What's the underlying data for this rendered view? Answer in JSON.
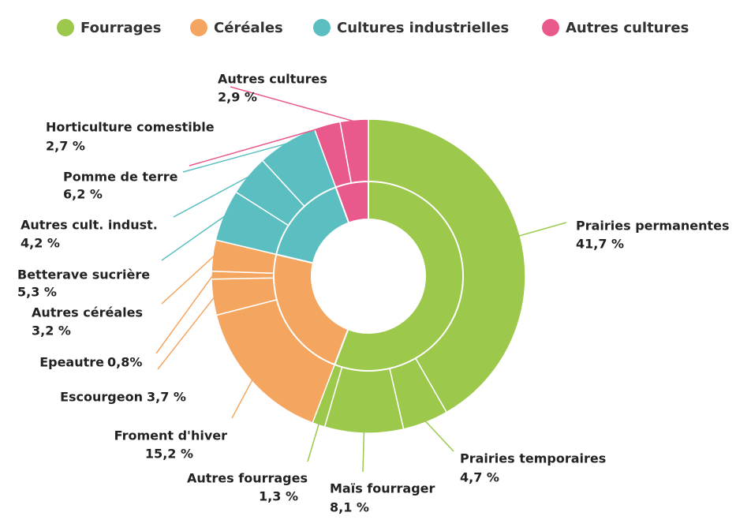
{
  "chart_data": {
    "type": "sunburst",
    "series": [
      {
        "name": "Fourrages",
        "color": "#9cc84c",
        "categories": [
          "Prairies permanentes",
          "Prairies temporaires",
          "Maïs fourrager",
          "Autres fourrages"
        ],
        "values": [
          41.7,
          4.7,
          8.1,
          1.3
        ],
        "value_labels": [
          "41,7 %",
          "4,7 %",
          "8,1 %",
          "1,3 %"
        ]
      },
      {
        "name": "Céréales",
        "color": "#f4a661",
        "categories": [
          "Froment d'hiver",
          "Escourgeon",
          "Epeautre",
          "Autres céréales"
        ],
        "values": [
          15.2,
          3.7,
          0.8,
          3.2
        ],
        "value_labels": [
          "15,2 %",
          "3,7 %",
          "0,8%",
          "3,2 %"
        ]
      },
      {
        "name": "Cultures industrielles",
        "color": "#5bbfc1",
        "categories": [
          "Betterave sucrière",
          "Autres cult. indust.",
          "Pomme de terre"
        ],
        "values": [
          5.3,
          4.2,
          6.2
        ],
        "value_labels": [
          "5,3 %",
          "4,2 %",
          "6,2 %"
        ]
      },
      {
        "name": "Autres cultures",
        "color": "#e9598b",
        "categories": [
          "Horticulture comestible",
          "Autres cultures"
        ],
        "values": [
          2.7,
          2.9
        ],
        "value_labels": [
          "2,7 %",
          "2,9 %"
        ]
      }
    ]
  }
}
